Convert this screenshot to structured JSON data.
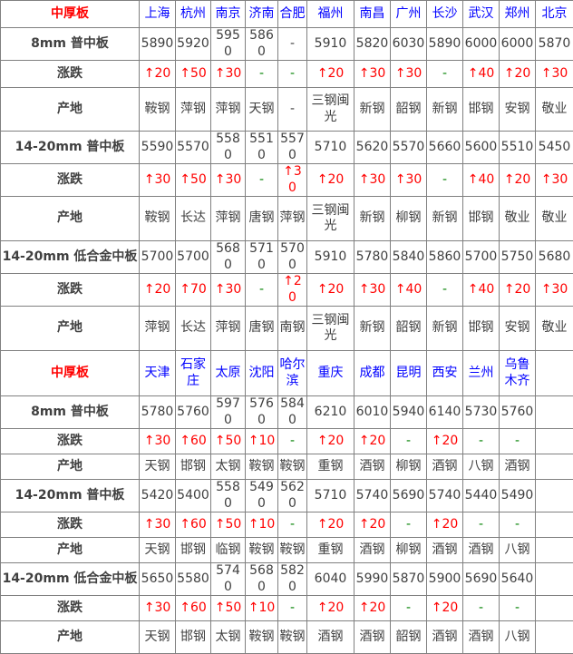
{
  "colors": {
    "section_label": "#ff0000",
    "city_text": "#0000ff",
    "value_text": "#404040",
    "up_change": "#ff0000",
    "no_change_dash": "#008000",
    "border": "#808080"
  },
  "chart_data": {
    "type": "table",
    "title": "中厚板",
    "sections": [
      {
        "header_label": "中厚板",
        "cities": [
          "上海",
          "杭州",
          "南京",
          "济南",
          "合肥",
          "福州",
          "南昌",
          "广州",
          "长沙",
          "武汉",
          "郑州",
          "北京"
        ],
        "rows": [
          {
            "label": "8mm 普中板",
            "type": "price",
            "values": [
              "5890",
              "5920",
              "5950",
              "5860",
              "-",
              "5910",
              "5820",
              "6030",
              "5890",
              "6000",
              "6000",
              "5870"
            ]
          },
          {
            "label": "涨跌",
            "type": "change",
            "values": [
              "↑20",
              "↑50",
              "↑30",
              "-",
              "-",
              "↑20",
              "↑30",
              "↑30",
              "-",
              "↑40",
              "↑20",
              "↑30"
            ]
          },
          {
            "label": "产地",
            "type": "origin",
            "values": [
              "鞍钢",
              "萍钢",
              "萍钢",
              "天钢",
              "-",
              "三钢闽光",
              "新钢",
              "韶钢",
              "新钢",
              "邯钢",
              "安钢",
              "敬业"
            ]
          },
          {
            "label": "14-20mm 普中板",
            "type": "price",
            "values": [
              "5590",
              "5570",
              "5580",
              "5510",
              "5570",
              "5710",
              "5620",
              "5570",
              "5660",
              "5600",
              "5510",
              "5450"
            ]
          },
          {
            "label": "涨跌",
            "type": "change",
            "values": [
              "↑30",
              "↑50",
              "↑30",
              "-",
              "↑30",
              "↑20",
              "↑30",
              "↑30",
              "-",
              "↑40",
              "↑20",
              "↑30"
            ]
          },
          {
            "label": "产地",
            "type": "origin",
            "values": [
              "鞍钢",
              "长达",
              "萍钢",
              "唐钢",
              "萍钢",
              "三钢闽光",
              "新钢",
              "柳钢",
              "新钢",
              "邯钢",
              "敬业",
              "敬业"
            ]
          },
          {
            "label": "14-20mm 低合金中板",
            "type": "price",
            "values": [
              "5700",
              "5700",
              "5680",
              "5710",
              "5700",
              "5910",
              "5780",
              "5840",
              "5860",
              "5700",
              "5750",
              "5680"
            ]
          },
          {
            "label": "涨跌",
            "type": "change",
            "values": [
              "↑20",
              "↑70",
              "↑30",
              "-",
              "↑20",
              "↑20",
              "↑30",
              "↑40",
              "-",
              "↑40",
              "↑20",
              "↑30"
            ]
          },
          {
            "label": "产地",
            "type": "origin",
            "values": [
              "萍钢",
              "长达",
              "萍钢",
              "唐钢",
              "南钢",
              "三钢闽光",
              "新钢",
              "韶钢",
              "新钢",
              "邯钢",
              "安钢",
              "敬业"
            ]
          }
        ]
      },
      {
        "header_label": "中厚板",
        "cities": [
          "天津",
          "石家庄",
          "太原",
          "沈阳",
          "哈尔滨",
          "重庆",
          "成都",
          "昆明",
          "西安",
          "兰州",
          "乌鲁木齐",
          ""
        ],
        "rows": [
          {
            "label": "8mm 普中板",
            "type": "price",
            "values": [
              "5780",
              "5760",
              "5970",
              "5760",
              "5840",
              "6210",
              "6010",
              "5940",
              "6140",
              "5730",
              "5760",
              ""
            ]
          },
          {
            "label": "涨跌",
            "type": "change",
            "values": [
              "↑30",
              "↑60",
              "↑50",
              "↑10",
              "-",
              "↑20",
              "↑20",
              "-",
              "↑20",
              "-",
              "-",
              ""
            ]
          },
          {
            "label": "产地",
            "type": "origin",
            "values": [
              "天钢",
              "邯钢",
              "太钢",
              "鞍钢",
              "鞍钢",
              "重钢",
              "酒钢",
              "柳钢",
              "酒钢",
              "八钢",
              "酒钢",
              ""
            ]
          },
          {
            "label": "14-20mm 普中板",
            "type": "price",
            "values": [
              "5420",
              "5400",
              "5580",
              "5490",
              "5620",
              "5710",
              "5740",
              "5690",
              "5740",
              "5440",
              "5490",
              ""
            ]
          },
          {
            "label": "涨跌",
            "type": "change",
            "values": [
              "↑30",
              "↑60",
              "↑50",
              "↑10",
              "-",
              "↑20",
              "↑20",
              "-",
              "↑20",
              "-",
              "-",
              ""
            ]
          },
          {
            "label": "产地",
            "type": "origin",
            "values": [
              "天钢",
              "邯钢",
              "临钢",
              "鞍钢",
              "鞍钢",
              "重钢",
              "酒钢",
              "柳钢",
              "酒钢",
              "酒钢",
              "八钢",
              ""
            ]
          },
          {
            "label": "14-20mm 低合金中板",
            "type": "price",
            "values": [
              "5650",
              "5580",
              "5740",
              "5680",
              "5820",
              "6040",
              "5990",
              "5870",
              "5900",
              "5690",
              "5640",
              ""
            ]
          },
          {
            "label": "涨跌",
            "type": "change",
            "values": [
              "↑30",
              "↑60",
              "↑50",
              "↑10",
              "-",
              "↑20",
              "↑20",
              "-",
              "↑20",
              "-",
              "-",
              ""
            ]
          },
          {
            "label": "产地",
            "type": "origin",
            "values": [
              "天钢",
              "邯钢",
              "太钢",
              "鞍钢",
              "鞍钢",
              "酒钢",
              "酒钢",
              "韶钢",
              "酒钢",
              "酒钢",
              "八钢",
              ""
            ]
          }
        ]
      }
    ]
  }
}
